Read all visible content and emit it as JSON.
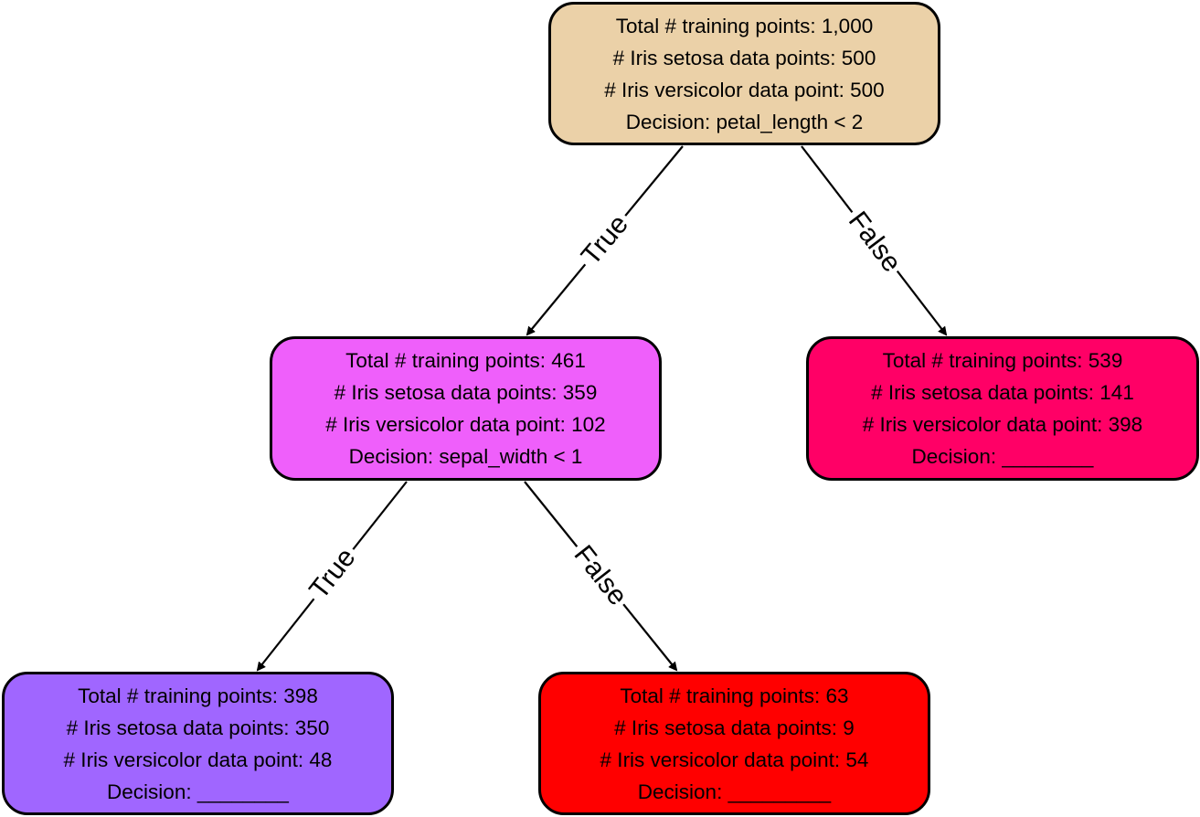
{
  "nodes": {
    "root": {
      "color": "#EBD1A8",
      "lines": [
        "Total # training points: 1,000",
        "# Iris setosa data points: 500",
        "# Iris versicolor data point: 500",
        "Decision: petal_length < 2"
      ]
    },
    "left": {
      "color": "#EF5FFB",
      "lines": [
        "Total # training points: 461",
        "# Iris setosa data points: 359",
        "# Iris versicolor data point: 102",
        "Decision: sepal_width < 1"
      ]
    },
    "right": {
      "color": "#FF0066",
      "lines": [
        "Total # training points: 539",
        "# Iris setosa data points: 141",
        "# Iris versicolor data point: 398",
        "Decision: ________"
      ]
    },
    "left_left": {
      "color": "#A066FF",
      "lines": [
        "Total # training points: 398",
        "# Iris setosa data points: 350",
        "# Iris versicolor data point: 48",
        "Decision: ________"
      ]
    },
    "left_right": {
      "color": "#FF0000",
      "lines": [
        "Total # training points: 63",
        "# Iris setosa data points: 9",
        "# Iris versicolor data point: 54",
        "Decision: _________"
      ]
    }
  },
  "edges": {
    "root_true": "True",
    "root_false": "False",
    "left_true": "True",
    "left_false": "False"
  }
}
